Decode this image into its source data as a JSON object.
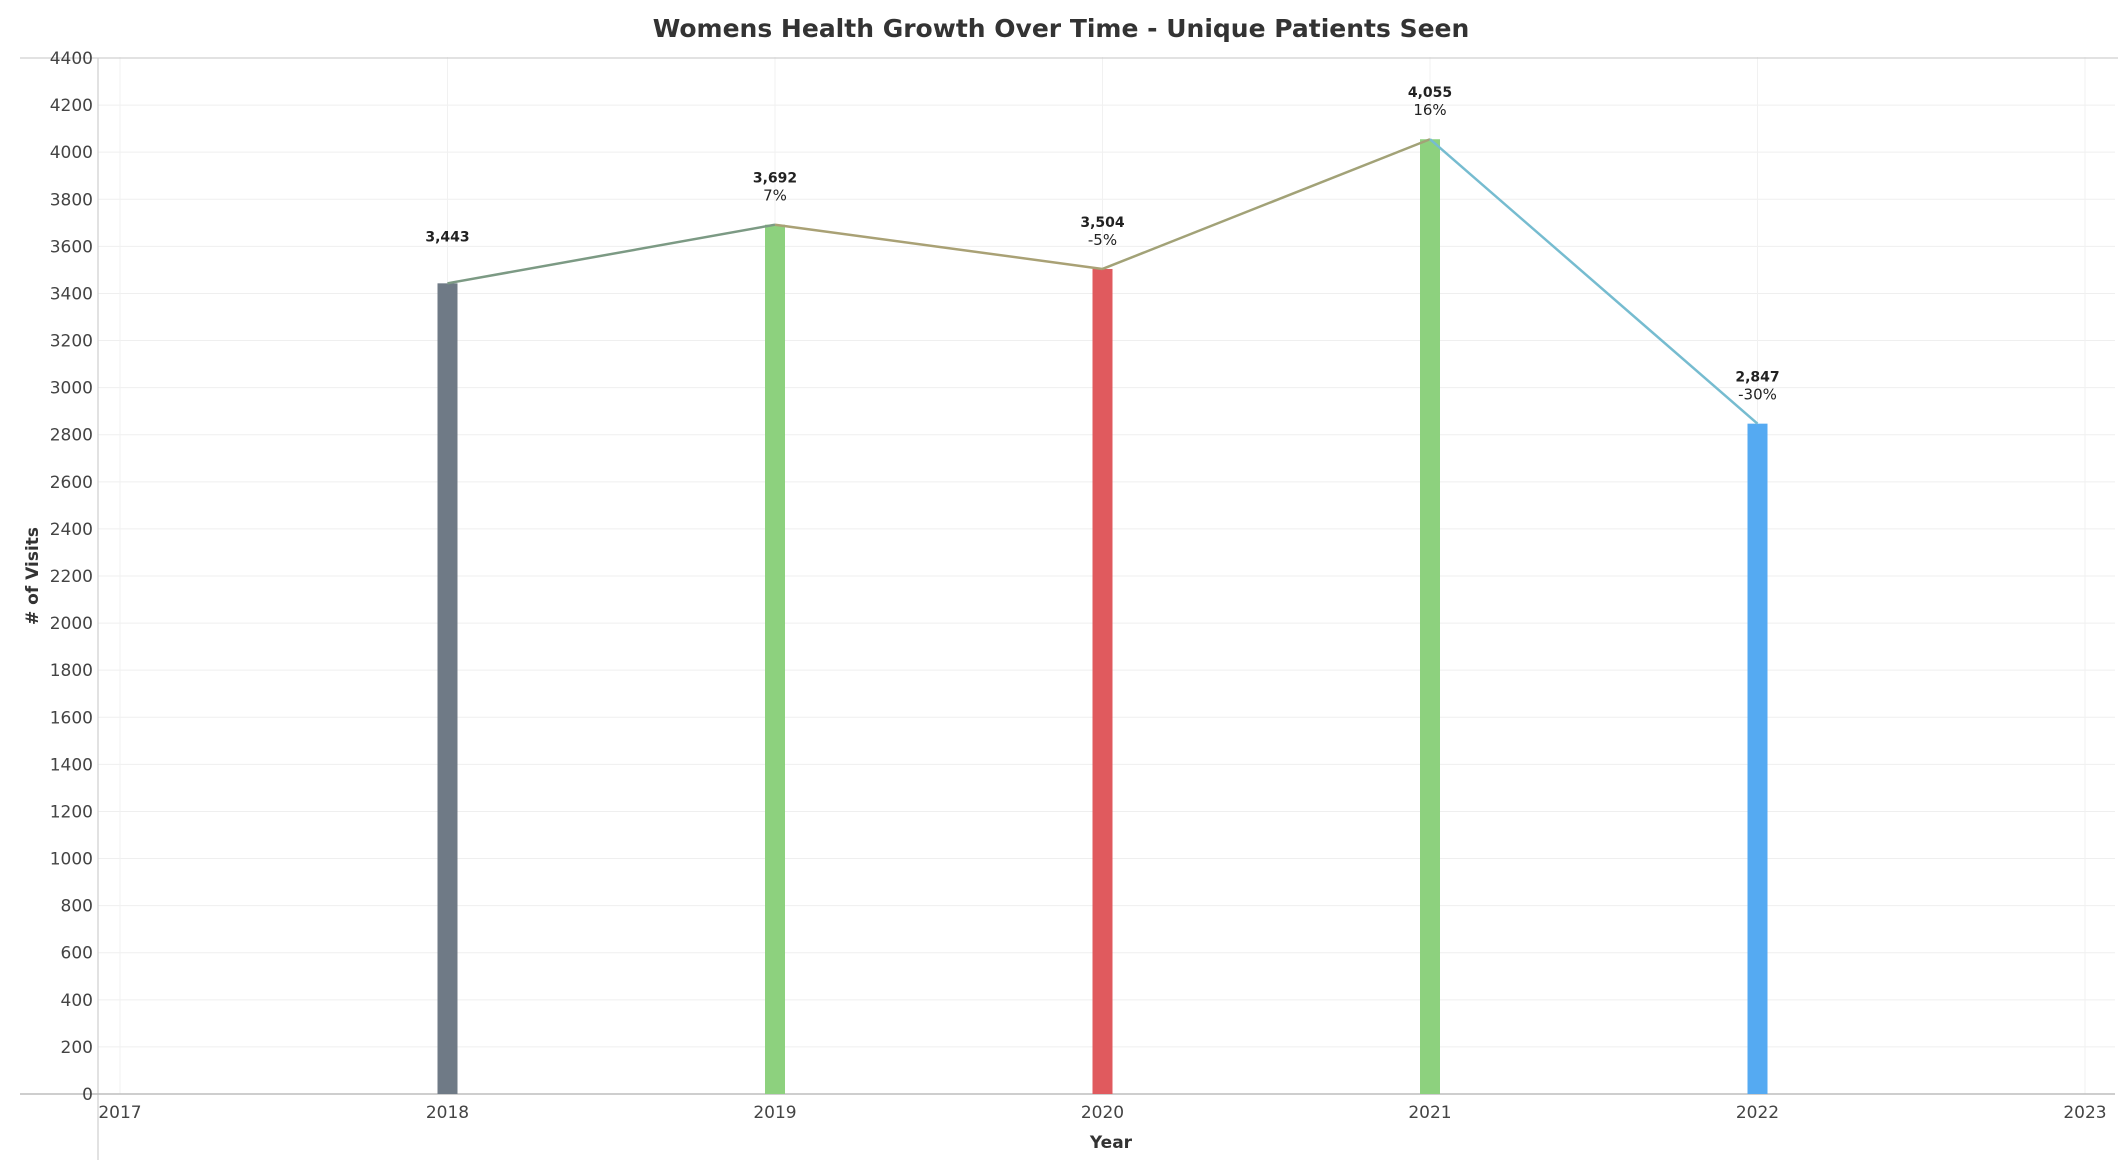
{
  "chart_data": {
    "type": "bar",
    "title": "Womens Health Growth Over Time - Unique Patients Seen",
    "xlabel": "Year",
    "ylabel": "# of Visits",
    "x_ticks": [
      "2017",
      "2018",
      "2019",
      "2020",
      "2021",
      "2022",
      "2023"
    ],
    "y_ticks": [
      "0",
      "200",
      "400",
      "600",
      "800",
      "1000",
      "1200",
      "1400",
      "1600",
      "1800",
      "2000",
      "2200",
      "2400",
      "2600",
      "2800",
      "3000",
      "3200",
      "3400",
      "3600",
      "3800",
      "4000",
      "4200",
      "4400"
    ],
    "ylim": [
      0,
      4400
    ],
    "xlim": [
      2017,
      2023
    ],
    "grid": true,
    "legend": "none",
    "points": [
      {
        "x": 2018,
        "value": 3443,
        "value_label": "3,443",
        "pct_label": "",
        "color": "#6f7a86"
      },
      {
        "x": 2019,
        "value": 3692,
        "value_label": "3,692",
        "pct_label": "7%",
        "color": "#8dd17e"
      },
      {
        "x": 2020,
        "value": 3504,
        "value_label": "3,504",
        "pct_label": "-5%",
        "color": "#e05a5e"
      },
      {
        "x": 2021,
        "value": 4055,
        "value_label": "4,055",
        "pct_label": "16%",
        "color": "#8dd17e"
      },
      {
        "x": 2022,
        "value": 2847,
        "value_label": "2,847",
        "pct_label": "-30%",
        "color": "#55aaf2"
      }
    ],
    "trend_line": {
      "segment_colors": [
        "#7c9a84",
        "#a9a175",
        "#a2a277",
        "#76bcd0"
      ]
    }
  }
}
